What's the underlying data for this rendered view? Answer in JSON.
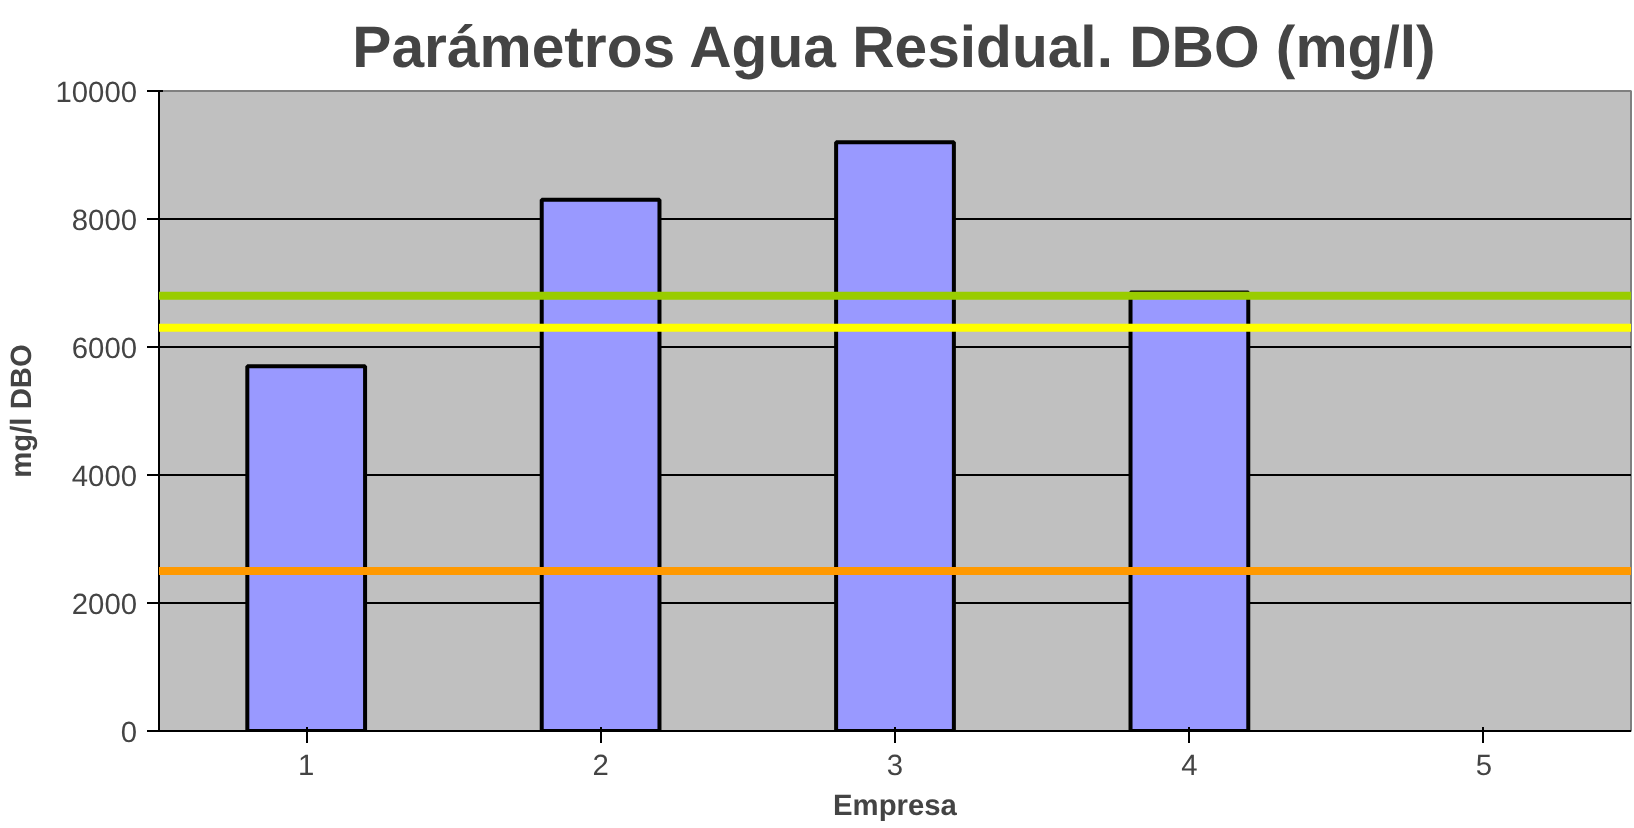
{
  "chart_data": {
    "type": "bar",
    "title": "Parámetros Agua Residual. DBO (mg/l)",
    "xlabel": "Empresa",
    "ylabel": "mg/l DBO",
    "categories": [
      "1",
      "2",
      "3",
      "4",
      "5"
    ],
    "values": [
      5700,
      8300,
      9200,
      6850,
      null
    ],
    "color": "#9999ff",
    "ylim": [
      0,
      10000
    ],
    "yticks": [
      0,
      2000,
      4000,
      6000,
      8000,
      10000
    ],
    "grid": "y",
    "ref_lines": [
      {
        "axis": "y",
        "value": 6800,
        "label": null,
        "color": "#99cc00"
      },
      {
        "axis": "y",
        "value": 6300,
        "label": null,
        "color": "#ffff00"
      },
      {
        "axis": "y",
        "value": 2500,
        "label": null,
        "color": "#ff9900"
      }
    ]
  }
}
